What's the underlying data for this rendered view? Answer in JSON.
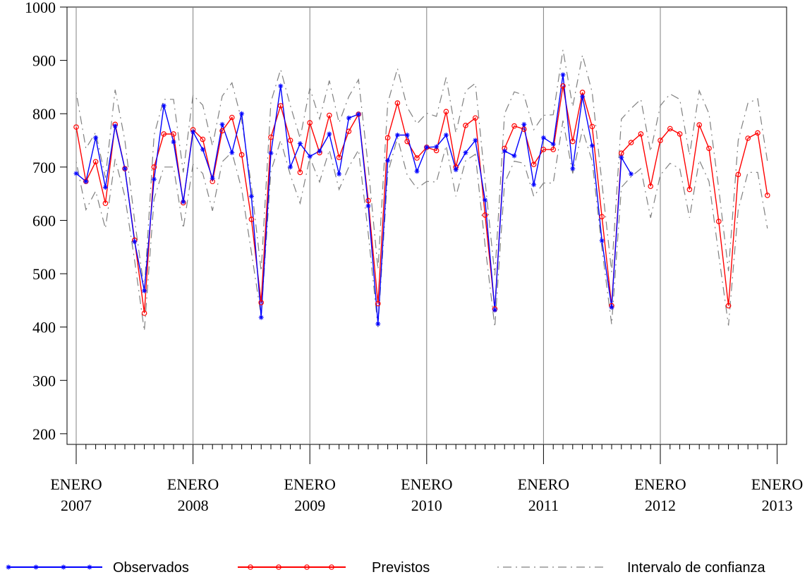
{
  "chart_data": {
    "type": "line",
    "title": "",
    "xlabel": "",
    "ylabel": "",
    "ylim": [
      180,
      1000
    ],
    "yticks": [
      200,
      300,
      400,
      500,
      600,
      700,
      800,
      900,
      1000
    ],
    "x_start": "2007-01",
    "x_ticks": [
      {
        "line1": "ENERO",
        "line2": "2007",
        "index": 0
      },
      {
        "line1": "ENERO",
        "line2": "2008",
        "index": 12
      },
      {
        "line1": "ENERO",
        "line2": "2009",
        "index": 24
      },
      {
        "line1": "ENERO",
        "line2": "2010",
        "index": 36
      },
      {
        "line1": "ENERO",
        "line2": "2011",
        "index": 48
      },
      {
        "line1": "ENERO",
        "line2": "2012",
        "index": 60
      },
      {
        "line1": "ENERO",
        "line2": "2013",
        "index": 72
      }
    ],
    "grid": "vertical lines at each year",
    "legend_placement": "bottom",
    "series": [
      {
        "name": "Observados",
        "color": "#0000ff",
        "marker": "star",
        "values": [
          688,
          673,
          755,
          662,
          777,
          697,
          560,
          468,
          677,
          815,
          747,
          635,
          766,
          733,
          679,
          780,
          727,
          800,
          645,
          418,
          726,
          852,
          700,
          744,
          720,
          730,
          762,
          687,
          792,
          799,
          627,
          406,
          712,
          760,
          760,
          692,
          737,
          738,
          760,
          695,
          727,
          750,
          638,
          432,
          730,
          721,
          780,
          667,
          755,
          743,
          873,
          697,
          832,
          740,
          562,
          437,
          718,
          687
        ]
      },
      {
        "name": "Previstos",
        "color": "#ff0000",
        "marker": "circle",
        "values": [
          775,
          673,
          710,
          632,
          780,
          697,
          563,
          426,
          700,
          762,
          762,
          633,
          770,
          752,
          673,
          768,
          793,
          723,
          602,
          446,
          756,
          815,
          750,
          690,
          783,
          727,
          797,
          718,
          767,
          799,
          637,
          444,
          755,
          820,
          748,
          717,
          737,
          731,
          804,
          700,
          778,
          792,
          610,
          434,
          735,
          777,
          771,
          705,
          733,
          733,
          852,
          748,
          840,
          776,
          607,
          440,
          726,
          746,
          762,
          664,
          750,
          772,
          762,
          658,
          779,
          735,
          598,
          440,
          686,
          754,
          764,
          647
        ]
      },
      {
        "name": "Intervalo de confianza",
        "color": "#808080",
        "dash": "dash-dot",
        "upper": [
          840,
          735,
          765,
          680,
          845,
          750,
          600,
          470,
          760,
          827,
          827,
          690,
          835,
          816,
          740,
          833,
          858,
          787,
          665,
          505,
          822,
          883,
          815,
          754,
          848,
          790,
          862,
          783,
          832,
          864,
          700,
          508,
          820,
          885,
          812,
          781,
          801,
          795,
          868,
          764,
          843,
          857,
          674,
          497,
          800,
          841,
          835,
          770,
          797,
          798,
          920,
          813,
          910,
          840,
          671,
          503,
          790,
          810,
          827,
          729,
          815,
          837,
          827,
          722,
          843,
          800,
          660,
          505,
          750,
          820,
          828,
          711
        ],
        "lower": [
          710,
          620,
          655,
          585,
          715,
          645,
          525,
          393,
          640,
          700,
          700,
          585,
          705,
          688,
          618,
          710,
          728,
          658,
          540,
          420,
          692,
          750,
          685,
          632,
          718,
          672,
          732,
          658,
          700,
          732,
          575,
          400,
          688,
          755,
          685,
          660,
          673,
          672,
          740,
          645,
          712,
          724,
          553,
          400,
          670,
          711,
          707,
          645,
          670,
          670,
          787,
          688,
          770,
          711,
          548,
          405,
          662,
          682,
          697,
          605,
          685,
          707,
          697,
          605,
          713,
          673,
          535,
          403,
          620,
          690,
          690,
          585
        ]
      }
    ]
  },
  "legend": {
    "observados": "Observados",
    "previstos": "Previstos",
    "intervalo": "Intervalo de confianza"
  }
}
